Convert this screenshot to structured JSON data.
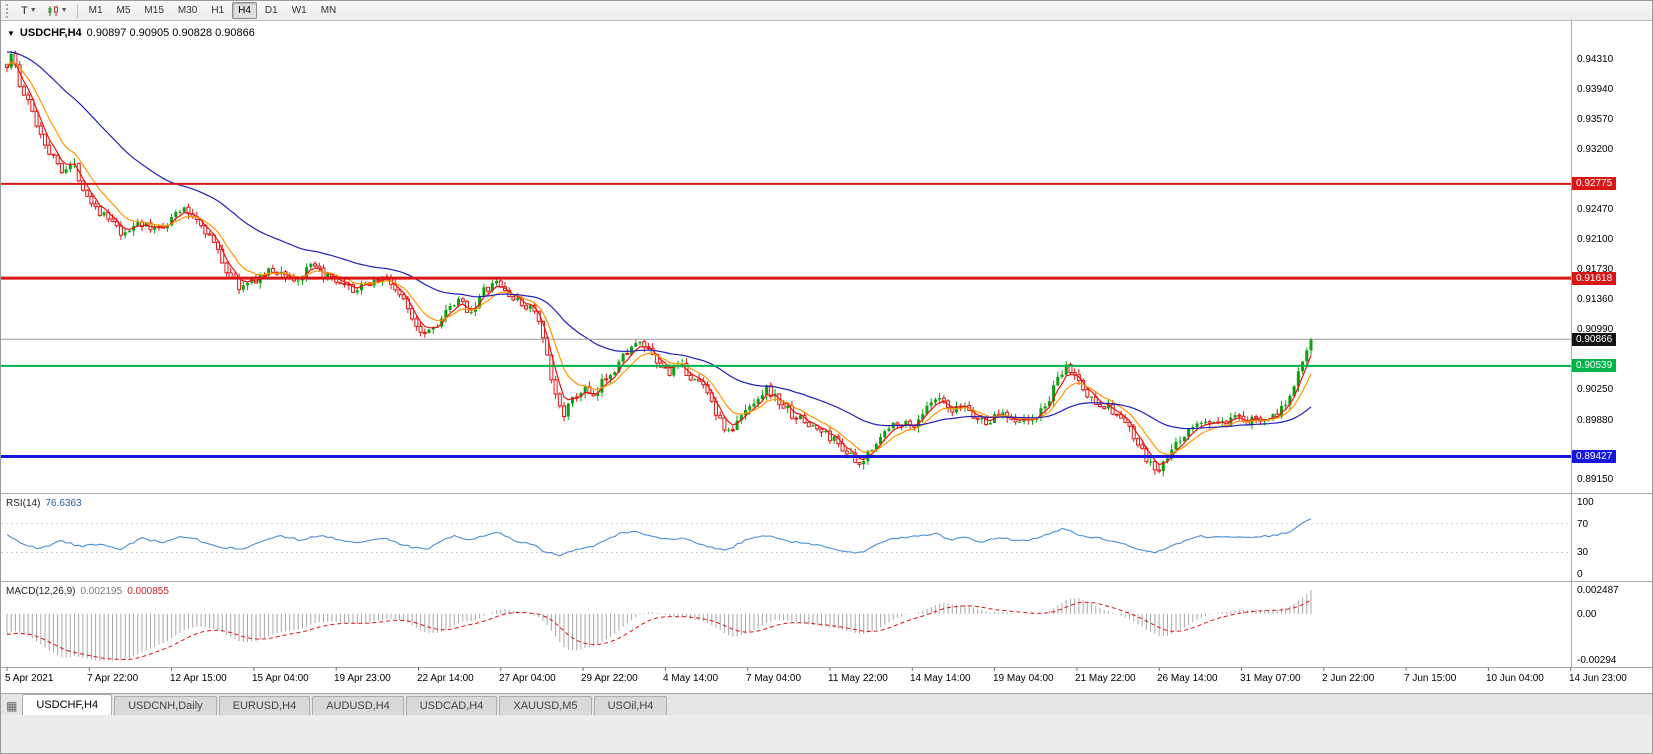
{
  "toolbar": {
    "chart_type_label": "T",
    "timeframes": [
      "M1",
      "M5",
      "M15",
      "M30",
      "H1",
      "H4",
      "D1",
      "W1",
      "MN"
    ],
    "active_timeframe": "H4"
  },
  "chart_header": {
    "symbol": "USDCHF,H4",
    "open": "0.90897",
    "high": "0.90905",
    "low": "0.90828",
    "close": "0.90866",
    "ohlc": "0.90897 0.90905 0.90828 0.90866"
  },
  "indicators": {
    "rsi": {
      "label": "RSI(14)",
      "value": "76.6363",
      "axis_labels": [
        "100",
        "70",
        "30",
        "0"
      ]
    },
    "macd": {
      "label": "MACD(12,26,9)",
      "value_main": "0.002195",
      "value_signal": "0.000855",
      "axis_top": "0.002487",
      "axis_zero": "0.00",
      "axis_bottom": "-0.00294"
    }
  },
  "price_axis": {
    "ticks": [
      "0.94310",
      "0.93940",
      "0.93570",
      "0.93200",
      "0.92470",
      "0.92100",
      "0.91730",
      "0.91360",
      "0.90990",
      "0.90250",
      "0.89880",
      "0.89150"
    ],
    "labels": [
      {
        "text": "0.92775",
        "bg": "#d91616",
        "fg": "#ffffff"
      },
      {
        "text": "0.91618",
        "bg": "#d91616",
        "fg": "#ffffff"
      },
      {
        "text": "0.90866",
        "bg": "#141414",
        "fg": "#ffffff"
      },
      {
        "text": "0.90539",
        "bg": "#00b34a",
        "fg": "#ffffff"
      },
      {
        "text": "0.89427",
        "bg": "#1717dd",
        "fg": "#ffffff"
      }
    ]
  },
  "time_axis": {
    "labels": [
      "5 Apr 2021",
      "7 Apr 22:00",
      "12 Apr 15:00",
      "15 Apr 04:00",
      "19 Apr 23:00",
      "22 Apr 14:00",
      "27 Apr 04:00",
      "29 Apr 22:00",
      "4 May 14:00",
      "7 May 04:00",
      "11 May 22:00",
      "14 May 14:00",
      "19 May 04:00",
      "21 May 22:00",
      "26 May 14:00",
      "31 May 07:00",
      "2 Jun 22:00",
      "7 Jun 15:00",
      "10 Jun 04:00",
      "14 Jun 23:00"
    ]
  },
  "tabs": {
    "active": "USDCHF,H4",
    "items": [
      "USDCHF,H4",
      "USDCNH,Daily",
      "EURUSD,H4",
      "AUDUSD,H4",
      "USDCAD,H4",
      "XAUUSD,M5",
      "USOil,H4"
    ]
  },
  "chart_data": {
    "type": "candlestick",
    "symbol": "USDCHF",
    "timeframe": "H4",
    "current": {
      "open": 0.90897,
      "high": 0.90905,
      "low": 0.90828,
      "close": 0.90866
    },
    "price_scale": {
      "top": 0.94777,
      "bottom": 0.88978
    },
    "horizontal_lines": [
      {
        "price": 0.92775,
        "color": "#d91616",
        "width": 2
      },
      {
        "price": 0.91618,
        "color": "#d91616",
        "width": 3
      },
      {
        "price": 0.90539,
        "color": "#00b34a",
        "width": 2
      },
      {
        "price": 0.89427,
        "color": "#1717dd",
        "width": 3
      }
    ],
    "bid_line": {
      "price": 0.90866,
      "color": "#9a9a9a"
    },
    "bars": 310,
    "up_color": "#0ca010",
    "down_color": "#e01515",
    "price_path_anchors": [
      [
        6,
        0.9424
      ],
      [
        12,
        0.9441
      ],
      [
        18,
        0.9398
      ],
      [
        28,
        0.9376
      ],
      [
        38,
        0.9344
      ],
      [
        50,
        0.9313
      ],
      [
        62,
        0.9295
      ],
      [
        72,
        0.9303
      ],
      [
        84,
        0.9268
      ],
      [
        96,
        0.9247
      ],
      [
        110,
        0.9231
      ],
      [
        123,
        0.9211
      ],
      [
        136,
        0.9233
      ],
      [
        150,
        0.9221
      ],
      [
        165,
        0.9229
      ],
      [
        180,
        0.9247
      ],
      [
        196,
        0.9235
      ],
      [
        212,
        0.9207
      ],
      [
        226,
        0.917
      ],
      [
        240,
        0.9149
      ],
      [
        255,
        0.9161
      ],
      [
        270,
        0.9171
      ],
      [
        283,
        0.9167
      ],
      [
        296,
        0.9157
      ],
      [
        310,
        0.9176
      ],
      [
        325,
        0.9164
      ],
      [
        340,
        0.9151
      ],
      [
        356,
        0.9147
      ],
      [
        370,
        0.9158
      ],
      [
        384,
        0.9163
      ],
      [
        396,
        0.9147
      ],
      [
        408,
        0.9121
      ],
      [
        420,
        0.9097
      ],
      [
        432,
        0.9101
      ],
      [
        445,
        0.9119
      ],
      [
        458,
        0.9133
      ],
      [
        470,
        0.9121
      ],
      [
        483,
        0.9146
      ],
      [
        496,
        0.9156
      ],
      [
        508,
        0.9141
      ],
      [
        520,
        0.9129
      ],
      [
        533,
        0.9125
      ],
      [
        543,
        0.9082
      ],
      [
        553,
        0.902
      ],
      [
        563,
        0.8997
      ],
      [
        573,
        0.9013
      ],
      [
        583,
        0.9027
      ],
      [
        593,
        0.9011
      ],
      [
        603,
        0.9039
      ],
      [
        615,
        0.9053
      ],
      [
        628,
        0.9076
      ],
      [
        642,
        0.9081
      ],
      [
        655,
        0.9057
      ],
      [
        668,
        0.9047
      ],
      [
        680,
        0.9053
      ],
      [
        693,
        0.9037
      ],
      [
        706,
        0.9027
      ],
      [
        718,
        0.8987
      ],
      [
        729,
        0.8971
      ],
      [
        741,
        0.8993
      ],
      [
        754,
        0.9013
      ],
      [
        766,
        0.9027
      ],
      [
        778,
        0.9009
      ],
      [
        791,
        0.8995
      ],
      [
        806,
        0.8983
      ],
      [
        821,
        0.8973
      ],
      [
        836,
        0.8961
      ],
      [
        849,
        0.8944
      ],
      [
        859,
        0.8927
      ],
      [
        869,
        0.8953
      ],
      [
        883,
        0.8971
      ],
      [
        897,
        0.8987
      ],
      [
        911,
        0.8979
      ],
      [
        925,
        0.9001
      ],
      [
        938,
        0.9013
      ],
      [
        951,
        0.8995
      ],
      [
        963,
        0.9007
      ],
      [
        975,
        0.8989
      ],
      [
        987,
        0.8985
      ],
      [
        1001,
        0.8997
      ],
      [
        1015,
        0.8989
      ],
      [
        1029,
        0.8985
      ],
      [
        1043,
        0.9001
      ],
      [
        1055,
        0.9031
      ],
      [
        1065,
        0.9053
      ],
      [
        1075,
        0.9041
      ],
      [
        1087,
        0.9015
      ],
      [
        1099,
        0.9009
      ],
      [
        1111,
        0.8999
      ],
      [
        1123,
        0.8987
      ],
      [
        1135,
        0.8961
      ],
      [
        1147,
        0.8935
      ],
      [
        1157,
        0.8923
      ],
      [
        1167,
        0.8941
      ],
      [
        1177,
        0.8961
      ],
      [
        1187,
        0.8975
      ],
      [
        1199,
        0.8983
      ],
      [
        1211,
        0.8986
      ],
      [
        1223,
        0.8981
      ],
      [
        1235,
        0.8989
      ],
      [
        1247,
        0.8984
      ],
      [
        1259,
        0.8991
      ],
      [
        1271,
        0.8993
      ],
      [
        1283,
        0.9001
      ],
      [
        1293,
        0.9032
      ],
      [
        1301,
        0.9063
      ],
      [
        1310,
        0.9087
      ]
    ],
    "moving_averages": [
      {
        "type": "ema",
        "period": 4,
        "color": "#ee1111",
        "init_offset": 0.0
      },
      {
        "type": "ema",
        "period": 9,
        "color": "#ff9900",
        "init_offset": 0.0004
      },
      {
        "type": "ema",
        "period": 40,
        "color": "#2020bb",
        "init_offset": 0.002
      }
    ],
    "rsi": {
      "period": 14,
      "current": 76.6363,
      "color": "#4a8fd3",
      "levels": [
        70,
        30
      ],
      "anchors": [
        [
          5,
          55
        ],
        [
          20,
          42
        ],
        [
          40,
          35
        ],
        [
          60,
          46
        ],
        [
          80,
          38
        ],
        [
          100,
          42
        ],
        [
          120,
          35
        ],
        [
          140,
          50
        ],
        [
          160,
          44
        ],
        [
          180,
          53
        ],
        [
          200,
          46
        ],
        [
          220,
          38
        ],
        [
          240,
          34
        ],
        [
          260,
          46
        ],
        [
          280,
          53
        ],
        [
          300,
          47
        ],
        [
          320,
          54
        ],
        [
          340,
          46
        ],
        [
          360,
          44
        ],
        [
          380,
          51
        ],
        [
          395,
          44
        ],
        [
          410,
          37
        ],
        [
          425,
          34
        ],
        [
          440,
          46
        ],
        [
          455,
          53
        ],
        [
          470,
          47
        ],
        [
          485,
          55
        ],
        [
          500,
          57
        ],
        [
          515,
          46
        ],
        [
          530,
          42
        ],
        [
          545,
          30
        ],
        [
          560,
          25
        ],
        [
          575,
          34
        ],
        [
          590,
          38
        ],
        [
          605,
          48
        ],
        [
          620,
          56
        ],
        [
          635,
          60
        ],
        [
          650,
          52
        ],
        [
          665,
          49
        ],
        [
          680,
          50
        ],
        [
          695,
          44
        ],
        [
          710,
          36
        ],
        [
          725,
          33
        ],
        [
          740,
          44
        ],
        [
          755,
          52
        ],
        [
          770,
          54
        ],
        [
          785,
          46
        ],
        [
          800,
          43
        ],
        [
          815,
          41
        ],
        [
          830,
          36
        ],
        [
          845,
          31
        ],
        [
          860,
          29
        ],
        [
          875,
          40
        ],
        [
          890,
          48
        ],
        [
          905,
          50
        ],
        [
          920,
          53
        ],
        [
          935,
          56
        ],
        [
          950,
          48
        ],
        [
          965,
          51
        ],
        [
          980,
          45
        ],
        [
          995,
          50
        ],
        [
          1010,
          48
        ],
        [
          1025,
          46
        ],
        [
          1040,
          52
        ],
        [
          1055,
          60
        ],
        [
          1065,
          63
        ],
        [
          1080,
          52
        ],
        [
          1095,
          50
        ],
        [
          1110,
          46
        ],
        [
          1125,
          40
        ],
        [
          1140,
          32
        ],
        [
          1155,
          30
        ],
        [
          1170,
          38
        ],
        [
          1185,
          48
        ],
        [
          1200,
          52
        ],
        [
          1215,
          50
        ],
        [
          1230,
          52
        ],
        [
          1245,
          51
        ],
        [
          1260,
          52
        ],
        [
          1275,
          54
        ],
        [
          1288,
          58
        ],
        [
          1298,
          66
        ],
        [
          1308,
          77
        ]
      ]
    },
    "macd": {
      "fast": 12,
      "slow": 26,
      "signal": 9,
      "current_main": 0.002195,
      "current_signal": 0.000855,
      "hist_color": "#a8a8a8",
      "signal_color": "#e01010",
      "init_fast_offset": 0.001,
      "init_slow_offset": 0.003
    }
  }
}
